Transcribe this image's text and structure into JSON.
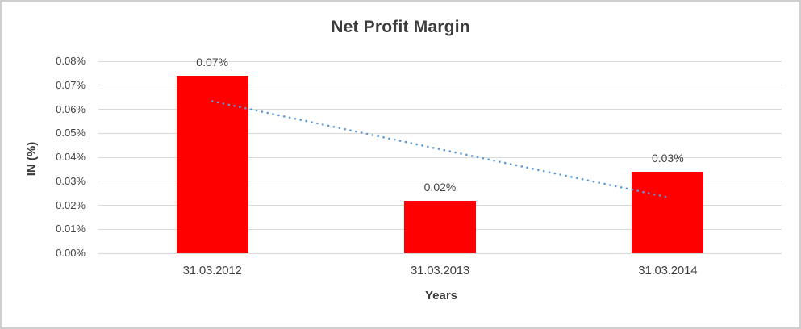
{
  "chart_data": {
    "type": "bar",
    "title": "Net Profit Margin",
    "xlabel": "Years",
    "ylabel": "IN (%)",
    "categories": [
      "31.03.2012",
      "31.03.2013",
      "31.03.2014"
    ],
    "series": [
      {
        "name": "Net Profit Margin",
        "values_percent": [
          0.074,
          0.022,
          0.034
        ],
        "data_labels": [
          "0.07%",
          "0.02%",
          "0.03%"
        ],
        "color": "#ff0000"
      }
    ],
    "ylim_percent": [
      0,
      0.08
    ],
    "y_ticks_percent": [
      0.08,
      0.07,
      0.06,
      0.05,
      0.04,
      0.03,
      0.02,
      0.01,
      0.0
    ],
    "y_tick_labels": [
      "0.08%",
      "0.07%",
      "0.06%",
      "0.05%",
      "0.04%",
      "0.03%",
      "0.02%",
      "0.01%",
      "0.00%"
    ],
    "grid": true,
    "legend_position": "none",
    "trendline": {
      "type": "linear",
      "style": "dotted",
      "color": "#5b9bd5",
      "start_value_percent": 0.0633,
      "end_value_percent": 0.0233
    },
    "colors": {
      "bar": "#ff0000",
      "trendline": "#5b9bd5",
      "gridline": "#d9d9d9",
      "axis_text": "#404040",
      "title_text": "#3d3d3d",
      "border": "#cfcfcf",
      "background": "#ffffff"
    }
  }
}
